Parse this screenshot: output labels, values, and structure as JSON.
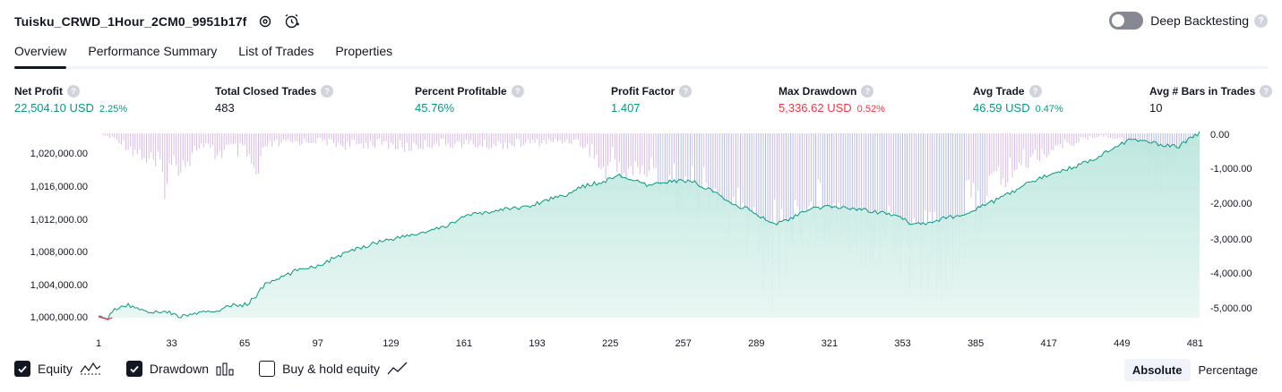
{
  "header": {
    "strategy_name": "Tuisku_CRWD_1Hour_2CM0_9951b17f",
    "deep_backtesting_label": "Deep Backtesting",
    "deep_backtesting_enabled": false,
    "help_glyph": "?"
  },
  "tabs": [
    {
      "label": "Overview",
      "active": true
    },
    {
      "label": "Performance Summary",
      "active": false
    },
    {
      "label": "List of Trades",
      "active": false
    },
    {
      "label": "Properties",
      "active": false
    }
  ],
  "metrics": [
    {
      "label": "Net Profit",
      "value": "22,504.10 USD",
      "pct": "2.25%",
      "color": "green"
    },
    {
      "label": "Total Closed Trades",
      "value": "483",
      "pct": "",
      "color": "dark"
    },
    {
      "label": "Percent Profitable",
      "value": "45.76%",
      "pct": "",
      "color": "green"
    },
    {
      "label": "Profit Factor",
      "value": "1.407",
      "pct": "",
      "color": "green"
    },
    {
      "label": "Max Drawdown",
      "value": "5,336.62 USD",
      "pct": "0.52%",
      "color": "red"
    },
    {
      "label": "Avg Trade",
      "value": "46.59 USD",
      "pct": "0.47%",
      "color": "green"
    },
    {
      "label": "Avg # Bars in Trades",
      "value": "10",
      "pct": "",
      "color": "dark"
    }
  ],
  "legend": {
    "equity_label": "Equity",
    "equity_checked": true,
    "drawdown_label": "Drawdown",
    "drawdown_checked": true,
    "buyhold_label": "Buy & hold equity",
    "buyhold_checked": false
  },
  "mode": {
    "absolute_label": "Absolute",
    "percentage_label": "Percentage",
    "active": "absolute"
  },
  "colors": {
    "equity_line": "#089981",
    "equity_fill": "#d5f0ea",
    "drawdown_positive": "#d9b9ea",
    "drawdown_deep": "#b3b9e8",
    "loss_start": "#f23645"
  },
  "icons": {
    "settings": "settings-icon",
    "alert": "add-alert-icon",
    "help": "help-icon",
    "equity": "equity-line-icon",
    "drawdown": "drawdown-bars-icon",
    "buyhold": "buy-hold-line-icon"
  },
  "chart_data": {
    "type": "line",
    "xlabel": "",
    "ylabel": "",
    "x_ticks": [
      "1",
      "33",
      "65",
      "97",
      "129",
      "161",
      "193",
      "225",
      "257",
      "289",
      "321",
      "353",
      "385",
      "417",
      "449",
      "481"
    ],
    "left_axis_ticks": [
      "1,020,000.00",
      "1,016,000.00",
      "1,012,000.00",
      "1,008,000.00",
      "1,004,000.00",
      "1,000,000.00"
    ],
    "right_axis_ticks": [
      "0.00",
      "-1,000.00",
      "-2,000.00",
      "-3,000.00",
      "-4,000.00",
      "-5,000.00"
    ],
    "x_range": [
      1,
      483
    ],
    "equity_ylim": [
      999800,
      1022504
    ],
    "drawdown_ylim": [
      -5336.62,
      0
    ],
    "series": [
      {
        "name": "Equity",
        "axis": "left",
        "points": [
          [
            1,
            1000000
          ],
          [
            5,
            999700
          ],
          [
            8,
            1001000
          ],
          [
            14,
            1001400
          ],
          [
            20,
            1000900
          ],
          [
            26,
            1000500
          ],
          [
            30,
            1000800
          ],
          [
            36,
            1000000
          ],
          [
            44,
            1000400
          ],
          [
            52,
            1000700
          ],
          [
            60,
            1001400
          ],
          [
            66,
            1001500
          ],
          [
            70,
            1002600
          ],
          [
            74,
            1004000
          ],
          [
            82,
            1004900
          ],
          [
            90,
            1006000
          ],
          [
            97,
            1006200
          ],
          [
            105,
            1007300
          ],
          [
            115,
            1008400
          ],
          [
            125,
            1009300
          ],
          [
            135,
            1009800
          ],
          [
            145,
            1010400
          ],
          [
            153,
            1011000
          ],
          [
            160,
            1012200
          ],
          [
            170,
            1012700
          ],
          [
            180,
            1013200
          ],
          [
            190,
            1013500
          ],
          [
            196,
            1014200
          ],
          [
            206,
            1015000
          ],
          [
            214,
            1016000
          ],
          [
            222,
            1016500
          ],
          [
            228,
            1017300
          ],
          [
            234,
            1016800
          ],
          [
            242,
            1015900
          ],
          [
            248,
            1016500
          ],
          [
            256,
            1016600
          ],
          [
            262,
            1016400
          ],
          [
            270,
            1015300
          ],
          [
            278,
            1013800
          ],
          [
            286,
            1013100
          ],
          [
            292,
            1012000
          ],
          [
            296,
            1011300
          ],
          [
            304,
            1012000
          ],
          [
            312,
            1013100
          ],
          [
            320,
            1013400
          ],
          [
            330,
            1013300
          ],
          [
            340,
            1012900
          ],
          [
            350,
            1012400
          ],
          [
            356,
            1011500
          ],
          [
            362,
            1011400
          ],
          [
            370,
            1011900
          ],
          [
            380,
            1012600
          ],
          [
            390,
            1013700
          ],
          [
            400,
            1015100
          ],
          [
            410,
            1016600
          ],
          [
            420,
            1017700
          ],
          [
            430,
            1018500
          ],
          [
            438,
            1019500
          ],
          [
            446,
            1020800
          ],
          [
            452,
            1021500
          ],
          [
            460,
            1021400
          ],
          [
            468,
            1020900
          ],
          [
            474,
            1020800
          ],
          [
            480,
            1022000
          ],
          [
            483,
            1022504
          ]
        ]
      },
      {
        "name": "Drawdown",
        "axis": "right",
        "points": [
          [
            1,
            0
          ],
          [
            10,
            -300
          ],
          [
            20,
            -900
          ],
          [
            27,
            -1500
          ],
          [
            30,
            -1900
          ],
          [
            34,
            -1300
          ],
          [
            40,
            -1100
          ],
          [
            45,
            -500
          ],
          [
            53,
            -900
          ],
          [
            58,
            -600
          ],
          [
            66,
            -900
          ],
          [
            70,
            -2000
          ],
          [
            75,
            -500
          ],
          [
            85,
            -400
          ],
          [
            97,
            -300
          ],
          [
            110,
            -500
          ],
          [
            125,
            -400
          ],
          [
            135,
            -600
          ],
          [
            150,
            -400
          ],
          [
            170,
            -500
          ],
          [
            190,
            -400
          ],
          [
            210,
            -300
          ],
          [
            218,
            -800
          ],
          [
            222,
            -1800
          ],
          [
            226,
            -1000
          ],
          [
            232,
            -1700
          ],
          [
            240,
            -1500
          ],
          [
            246,
            -1800
          ],
          [
            252,
            -2200
          ],
          [
            258,
            -2600
          ],
          [
            264,
            -2500
          ],
          [
            270,
            -3000
          ],
          [
            278,
            -3500
          ],
          [
            284,
            -3800
          ],
          [
            290,
            -4400
          ],
          [
            295,
            -5336
          ],
          [
            300,
            -4800
          ],
          [
            308,
            -3500
          ],
          [
            316,
            -3200
          ],
          [
            324,
            -3500
          ],
          [
            334,
            -3800
          ],
          [
            344,
            -4200
          ],
          [
            350,
            -4600
          ],
          [
            356,
            -5000
          ],
          [
            362,
            -5300
          ],
          [
            368,
            -5100
          ],
          [
            374,
            -4600
          ],
          [
            380,
            -3800
          ],
          [
            388,
            -2800
          ],
          [
            396,
            -1900
          ],
          [
            404,
            -1300
          ],
          [
            412,
            -900
          ],
          [
            420,
            -600
          ],
          [
            430,
            -300
          ],
          [
            440,
            -100
          ],
          [
            448,
            -200
          ],
          [
            456,
            -700
          ],
          [
            462,
            -1400
          ],
          [
            466,
            -1900
          ],
          [
            470,
            -1200
          ],
          [
            476,
            -500
          ],
          [
            483,
            0
          ]
        ]
      }
    ]
  }
}
